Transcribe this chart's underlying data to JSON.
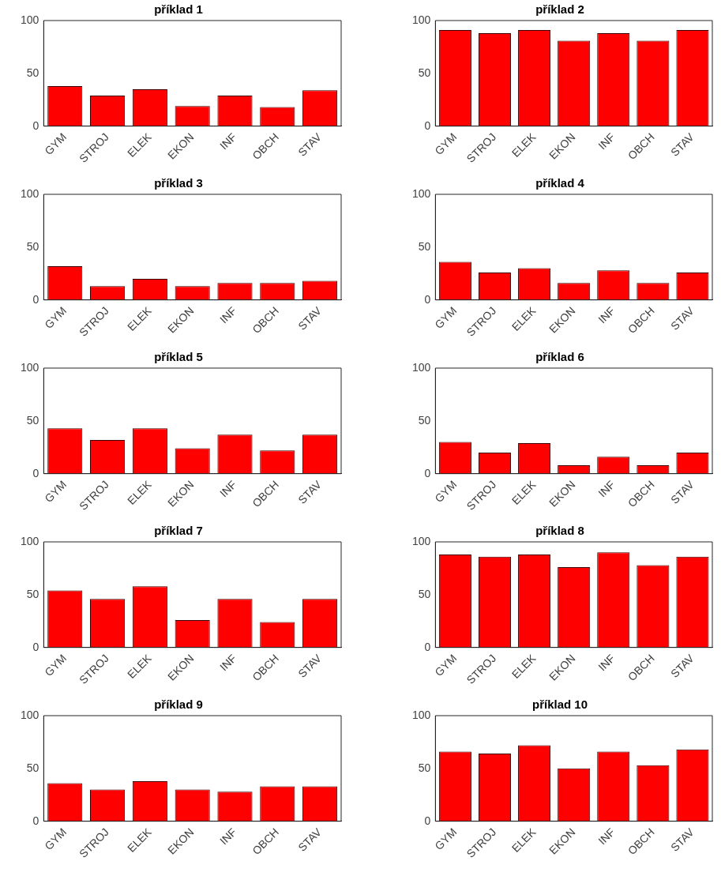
{
  "chart_data": [
    {
      "type": "bar",
      "title": "příklad 1",
      "categories": [
        "GYM",
        "STROJ",
        "ELEK",
        "EKON",
        "INF",
        "OBCH",
        "STAV"
      ],
      "values": [
        38,
        29,
        35,
        19,
        29,
        18,
        34
      ],
      "color": "#ff0000",
      "ylim": [
        0,
        100
      ],
      "yticks": [
        0,
        50,
        100
      ],
      "grid": false
    },
    {
      "type": "bar",
      "title": "příklad 2",
      "categories": [
        "GYM",
        "STROJ",
        "ELEK",
        "EKON",
        "INF",
        "OBCH",
        "STAV"
      ],
      "values": [
        91,
        88,
        91,
        81,
        88,
        81,
        91
      ],
      "color": "#ff0000",
      "ylim": [
        0,
        100
      ],
      "yticks": [
        0,
        50,
        100
      ],
      "grid": false
    },
    {
      "type": "bar",
      "title": "příklad 3",
      "categories": [
        "GYM",
        "STROJ",
        "ELEK",
        "EKON",
        "INF",
        "OBCH",
        "STAV"
      ],
      "values": [
        32,
        13,
        20,
        13,
        16,
        16,
        18
      ],
      "color": "#ff0000",
      "ylim": [
        0,
        100
      ],
      "yticks": [
        0,
        50,
        100
      ],
      "grid": false
    },
    {
      "type": "bar",
      "title": "příklad 4",
      "categories": [
        "GYM",
        "STROJ",
        "ELEK",
        "EKON",
        "INF",
        "OBCH",
        "STAV"
      ],
      "values": [
        36,
        26,
        30,
        16,
        28,
        16,
        26
      ],
      "color": "#ff0000",
      "ylim": [
        0,
        100
      ],
      "yticks": [
        0,
        50,
        100
      ],
      "grid": false
    },
    {
      "type": "bar",
      "title": "příklad 5",
      "categories": [
        "GYM",
        "STROJ",
        "ELEK",
        "EKON",
        "INF",
        "OBCH",
        "STAV"
      ],
      "values": [
        43,
        32,
        43,
        24,
        37,
        22,
        37
      ],
      "color": "#ff0000",
      "ylim": [
        0,
        100
      ],
      "yticks": [
        0,
        50,
        100
      ],
      "grid": false
    },
    {
      "type": "bar",
      "title": "příklad 6",
      "categories": [
        "GYM",
        "STROJ",
        "ELEK",
        "EKON",
        "INF",
        "OBCH",
        "STAV"
      ],
      "values": [
        30,
        20,
        29,
        8,
        16,
        8,
        20
      ],
      "color": "#ff0000",
      "ylim": [
        0,
        100
      ],
      "yticks": [
        0,
        50,
        100
      ],
      "grid": false
    },
    {
      "type": "bar",
      "title": "příklad 7",
      "categories": [
        "GYM",
        "STROJ",
        "ELEK",
        "EKON",
        "INF",
        "OBCH",
        "STAV"
      ],
      "values": [
        54,
        46,
        58,
        26,
        46,
        24,
        46
      ],
      "color": "#ff0000",
      "ylim": [
        0,
        100
      ],
      "yticks": [
        0,
        50,
        100
      ],
      "grid": false
    },
    {
      "type": "bar",
      "title": "příklad 8",
      "categories": [
        "GYM",
        "STROJ",
        "ELEK",
        "EKON",
        "INF",
        "OBCH",
        "STAV"
      ],
      "values": [
        88,
        86,
        88,
        76,
        90,
        78,
        86
      ],
      "color": "#ff0000",
      "ylim": [
        0,
        100
      ],
      "yticks": [
        0,
        50,
        100
      ],
      "grid": false
    },
    {
      "type": "bar",
      "title": "příklad 9",
      "categories": [
        "GYM",
        "STROJ",
        "ELEK",
        "EKON",
        "INF",
        "OBCH",
        "STAV"
      ],
      "values": [
        36,
        30,
        38,
        30,
        28,
        33,
        33
      ],
      "color": "#ff0000",
      "ylim": [
        0,
        100
      ],
      "yticks": [
        0,
        50,
        100
      ],
      "grid": false
    },
    {
      "type": "bar",
      "title": "příklad 10",
      "categories": [
        "GYM",
        "STROJ",
        "ELEK",
        "EKON",
        "INF",
        "OBCH",
        "STAV"
      ],
      "values": [
        66,
        64,
        72,
        50,
        66,
        53,
        68
      ],
      "color": "#ff0000",
      "ylim": [
        0,
        100
      ],
      "yticks": [
        0,
        50,
        100
      ],
      "grid": false
    }
  ]
}
